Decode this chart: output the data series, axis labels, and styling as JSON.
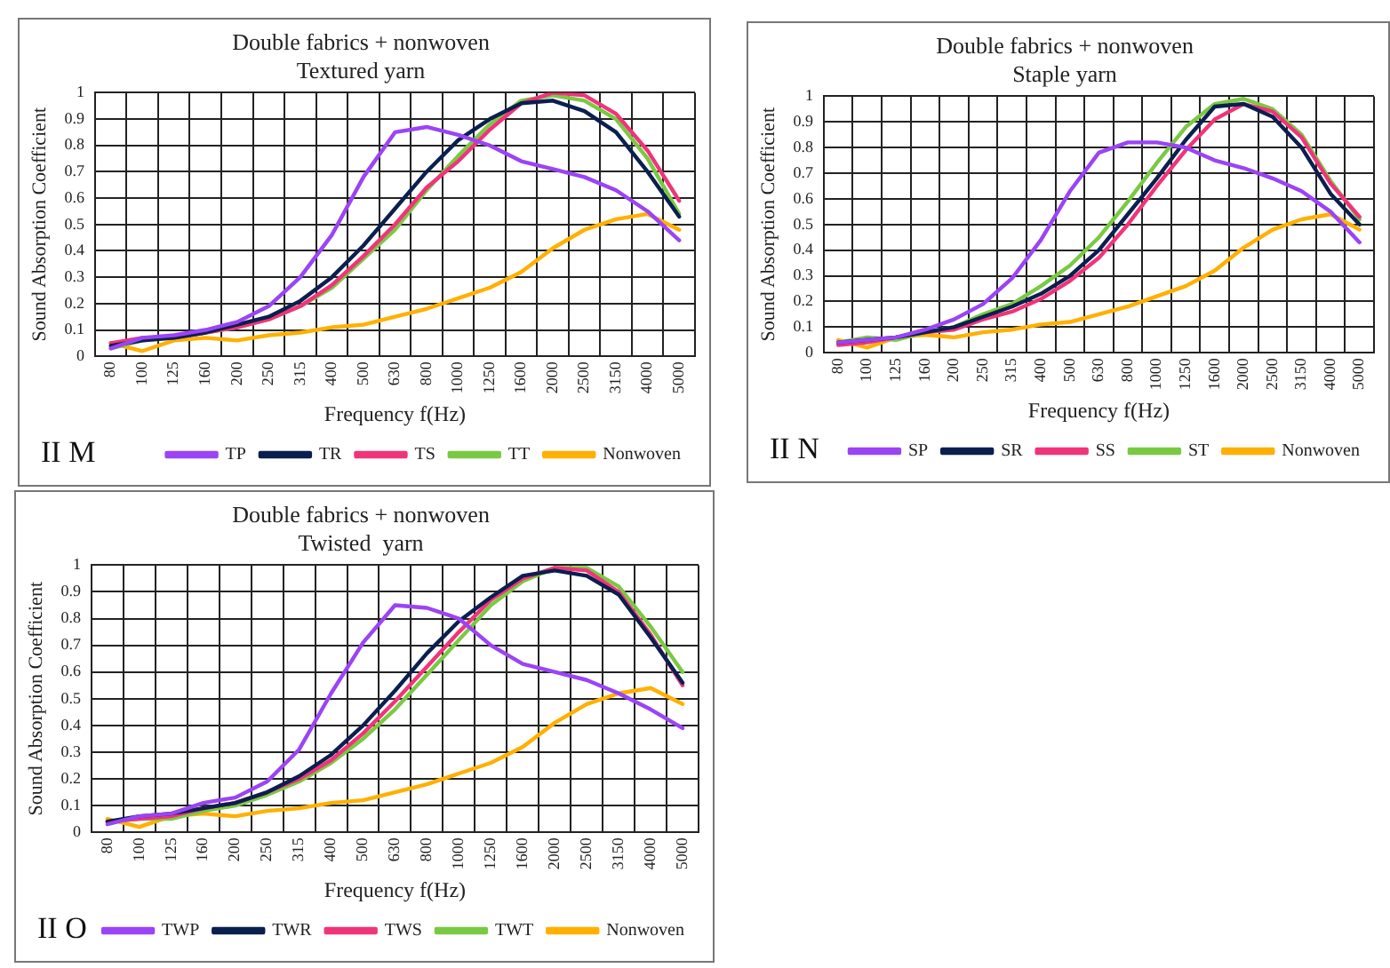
{
  "chart_data": [
    {
      "type": "line",
      "title": "Double fabrics + nonwoven",
      "subtitle": "Textured yarn",
      "xlabel": "Frequency f(Hz)",
      "ylabel": "Sound Absorption Coefficient",
      "annotations": [
        "II M"
      ],
      "categories": [
        "80",
        "100",
        "125",
        "160",
        "200",
        "250",
        "315",
        "400",
        "500",
        "630",
        "800",
        "1000",
        "1250",
        "1600",
        "2000",
        "2500",
        "3150",
        "4000",
        "5000"
      ],
      "series": [
        {
          "name": "TP",
          "color": "#9b44f5",
          "values": [
            0.03,
            0.07,
            0.08,
            0.1,
            0.13,
            0.19,
            0.3,
            0.46,
            0.68,
            0.85,
            0.87,
            0.84,
            0.8,
            0.74,
            0.71,
            0.68,
            0.63,
            0.55,
            0.44
          ]
        },
        {
          "name": "TR",
          "color": "#0b1f4f",
          "values": [
            0.04,
            0.06,
            0.07,
            0.09,
            0.12,
            0.15,
            0.21,
            0.3,
            0.42,
            0.56,
            0.7,
            0.82,
            0.9,
            0.96,
            0.97,
            0.93,
            0.85,
            0.7,
            0.53
          ]
        },
        {
          "name": "TS",
          "color": "#f0347a",
          "values": [
            0.05,
            0.07,
            0.07,
            0.09,
            0.11,
            0.14,
            0.19,
            0.27,
            0.38,
            0.5,
            0.64,
            0.74,
            0.86,
            0.96,
            1.0,
            0.99,
            0.92,
            0.78,
            0.59
          ]
        },
        {
          "name": "TT",
          "color": "#7ac943",
          "values": [
            0.03,
            0.06,
            0.07,
            0.09,
            0.11,
            0.14,
            0.19,
            0.26,
            0.37,
            0.48,
            0.63,
            0.76,
            0.88,
            0.97,
            0.99,
            0.97,
            0.9,
            0.75,
            0.54
          ]
        },
        {
          "name": "Nonwoven",
          "color": "#ffb000",
          "values": [
            0.05,
            0.02,
            0.06,
            0.07,
            0.06,
            0.08,
            0.09,
            0.11,
            0.12,
            0.15,
            0.18,
            0.22,
            0.26,
            0.32,
            0.41,
            0.48,
            0.52,
            0.54,
            0.48
          ]
        }
      ],
      "ylim": [
        0,
        1
      ],
      "yticks": [
        0,
        0.1,
        0.2,
        0.3,
        0.4,
        0.5,
        0.6,
        0.7,
        0.8,
        0.9,
        1
      ],
      "grid": true,
      "legend": "bottom",
      "marker": "none",
      "line_style": "solid"
    },
    {
      "type": "line",
      "title": "Double fabrics + nonwoven",
      "subtitle": "Staple yarn",
      "xlabel": "Frequency f(Hz)",
      "ylabel": "Sound Absorption Coefficient",
      "annotations": [
        "II N"
      ],
      "categories": [
        "80",
        "100",
        "125",
        "160",
        "200",
        "250",
        "315",
        "400",
        "500",
        "630",
        "800",
        "1000",
        "1250",
        "1600",
        "2000",
        "2500",
        "3150",
        "4000",
        "5000"
      ],
      "series": [
        {
          "name": "SP",
          "color": "#9b44f5",
          "values": [
            0.04,
            0.05,
            0.06,
            0.09,
            0.13,
            0.19,
            0.29,
            0.44,
            0.63,
            0.78,
            0.82,
            0.82,
            0.8,
            0.75,
            0.72,
            0.68,
            0.63,
            0.55,
            0.43
          ]
        },
        {
          "name": "SR",
          "color": "#0b1f4f",
          "values": [
            0.04,
            0.05,
            0.06,
            0.08,
            0.1,
            0.14,
            0.18,
            0.23,
            0.3,
            0.4,
            0.54,
            0.68,
            0.83,
            0.96,
            0.97,
            0.92,
            0.8,
            0.62,
            0.5
          ]
        },
        {
          "name": "SS",
          "color": "#f0347a",
          "values": [
            0.03,
            0.04,
            0.06,
            0.08,
            0.09,
            0.13,
            0.16,
            0.21,
            0.28,
            0.37,
            0.5,
            0.65,
            0.79,
            0.91,
            0.97,
            0.94,
            0.84,
            0.66,
            0.53
          ]
        },
        {
          "name": "ST",
          "color": "#7ac943",
          "values": [
            0.04,
            0.06,
            0.05,
            0.08,
            0.1,
            0.15,
            0.19,
            0.26,
            0.34,
            0.45,
            0.59,
            0.74,
            0.88,
            0.97,
            0.99,
            0.95,
            0.85,
            0.67,
            0.52
          ]
        },
        {
          "name": "Nonwoven",
          "color": "#ffb000",
          "values": [
            0.05,
            0.02,
            0.06,
            0.07,
            0.06,
            0.08,
            0.09,
            0.11,
            0.12,
            0.15,
            0.18,
            0.22,
            0.26,
            0.32,
            0.41,
            0.48,
            0.52,
            0.54,
            0.48
          ]
        }
      ],
      "ylim": [
        0,
        1
      ],
      "yticks": [
        0,
        0.1,
        0.2,
        0.3,
        0.4,
        0.5,
        0.6,
        0.7,
        0.8,
        0.9,
        1
      ],
      "grid": true,
      "legend": "bottom",
      "marker": "none",
      "line_style": "solid"
    },
    {
      "type": "line",
      "title": "Double fabrics + nonwoven",
      "subtitle": "Twisted  yarn",
      "xlabel": "Frequency f(Hz)",
      "ylabel": "Sound Absorption Coefficient",
      "annotations": [
        "II O"
      ],
      "categories": [
        "80",
        "100",
        "125",
        "160",
        "200",
        "250",
        "315",
        "400",
        "500",
        "630",
        "800",
        "1000",
        "1250",
        "1600",
        "2000",
        "2500",
        "3150",
        "4000",
        "5000"
      ],
      "series": [
        {
          "name": "TWP",
          "color": "#9b44f5",
          "values": [
            0.03,
            0.06,
            0.07,
            0.11,
            0.13,
            0.19,
            0.31,
            0.52,
            0.71,
            0.85,
            0.84,
            0.8,
            0.7,
            0.63,
            0.6,
            0.57,
            0.52,
            0.46,
            0.39
          ]
        },
        {
          "name": "TWR",
          "color": "#0b1f4f",
          "values": [
            0.04,
            0.06,
            0.07,
            0.09,
            0.11,
            0.15,
            0.21,
            0.29,
            0.4,
            0.53,
            0.67,
            0.79,
            0.88,
            0.96,
            0.98,
            0.96,
            0.89,
            0.73,
            0.56
          ]
        },
        {
          "name": "TWS",
          "color": "#f0347a",
          "values": [
            0.04,
            0.05,
            0.06,
            0.09,
            0.11,
            0.15,
            0.2,
            0.27,
            0.37,
            0.49,
            0.62,
            0.75,
            0.87,
            0.95,
            0.99,
            0.98,
            0.9,
            0.74,
            0.55
          ]
        },
        {
          "name": "TWT",
          "color": "#7ac943",
          "values": [
            0.04,
            0.05,
            0.05,
            0.08,
            0.1,
            0.14,
            0.19,
            0.26,
            0.35,
            0.46,
            0.59,
            0.72,
            0.85,
            0.94,
            0.99,
            0.99,
            0.92,
            0.77,
            0.6
          ]
        },
        {
          "name": "Nonwoven",
          "color": "#ffb000",
          "values": [
            0.05,
            0.02,
            0.06,
            0.07,
            0.06,
            0.08,
            0.09,
            0.11,
            0.12,
            0.15,
            0.18,
            0.22,
            0.26,
            0.32,
            0.41,
            0.48,
            0.52,
            0.54,
            0.48
          ]
        }
      ],
      "ylim": [
        0,
        1
      ],
      "yticks": [
        0,
        0.1,
        0.2,
        0.3,
        0.4,
        0.5,
        0.6,
        0.7,
        0.8,
        0.9,
        1
      ],
      "grid": true,
      "legend": "bottom",
      "marker": "none",
      "line_style": "solid"
    }
  ]
}
